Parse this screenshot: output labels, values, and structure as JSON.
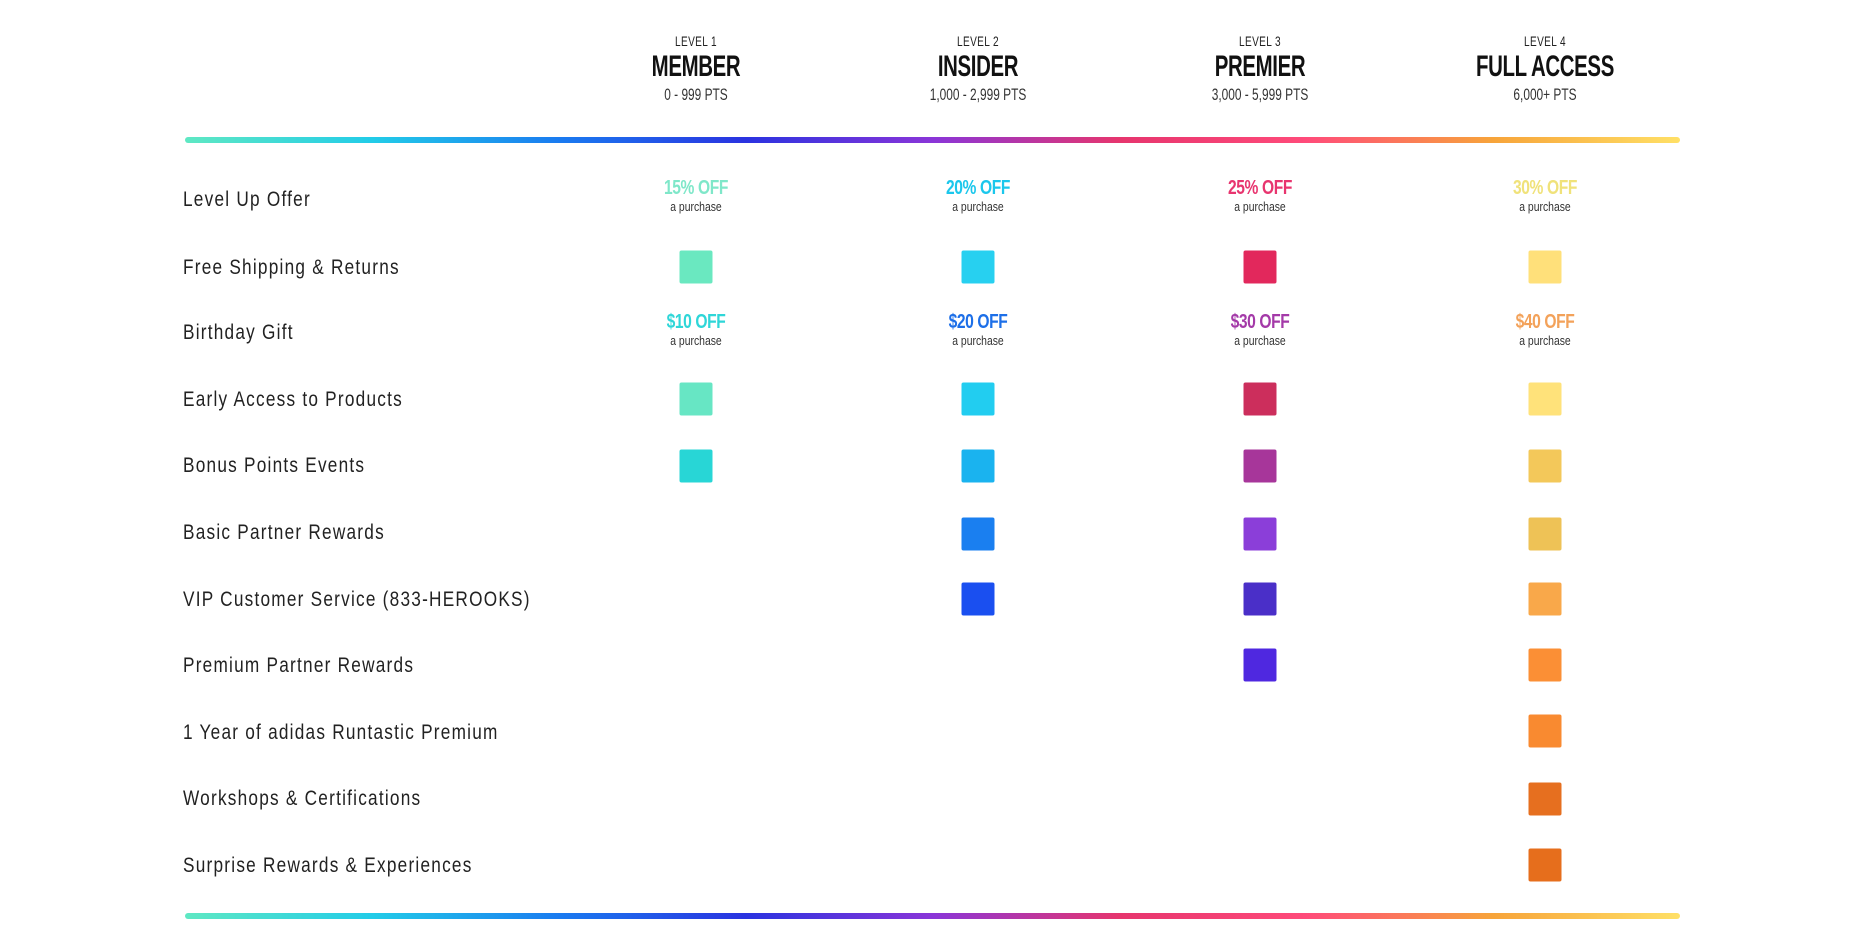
{
  "levels": [
    {
      "level": "LEVEL 1",
      "name": "MEMBER",
      "points": "0 - 999 PTS"
    },
    {
      "level": "LEVEL 2",
      "name": "INSIDER",
      "points": "1,000 - 2,999 PTS"
    },
    {
      "level": "LEVEL 3",
      "name": "PREMIER",
      "points": "3,000 - 5,999 PTS"
    },
    {
      "level": "LEVEL 4",
      "name": "FULL ACCESS",
      "points": "6,000+ PTS"
    }
  ],
  "rows": [
    "Level Up Offer",
    "Free Shipping & Returns",
    "Birthday Gift",
    "Early Access to Products",
    "Bonus Points Events",
    "Basic Partner Rewards",
    "VIP Customer Service (833-HEROOKS)",
    "Premium Partner Rewards",
    "1 Year of adidas Runtastic Premium",
    "Workshops & Certifications",
    "Surprise Rewards & Experiences"
  ],
  "offers": {
    "level_up": [
      {
        "amount": "15% OFF",
        "sub": "a purchase",
        "color": "#7fe7c9"
      },
      {
        "amount": "20% OFF",
        "sub": "a purchase",
        "color": "#1bc7ec"
      },
      {
        "amount": "25% OFF",
        "sub": "a purchase",
        "color": "#e8356f"
      },
      {
        "amount": "30% OFF",
        "sub": "a purchase",
        "color": "#f0e27a"
      }
    ],
    "birthday": [
      {
        "amount": "$10 OFF",
        "sub": "a purchase",
        "color": "#2fd6d8"
      },
      {
        "amount": "$20 OFF",
        "sub": "a purchase",
        "color": "#1d6fe8"
      },
      {
        "amount": "$30 OFF",
        "sub": "a purchase",
        "color": "#a43aa8"
      },
      {
        "amount": "$40 OFF",
        "sub": "a purchase",
        "color": "#f3a25a"
      }
    ]
  },
  "colors": {
    "gradient": [
      "#5fe8c3",
      "#22cce8",
      "#1a7bf0",
      "#2a33e0",
      "#8a35d8",
      "#e6356e",
      "#ff4b7a",
      "#f7a43a",
      "#ffe066"
    ]
  }
}
